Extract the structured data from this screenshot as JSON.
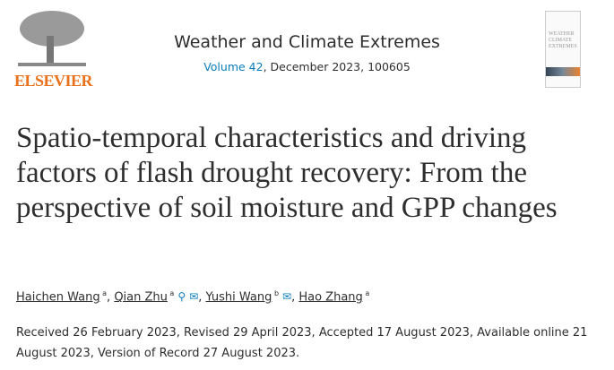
{
  "publisher": {
    "logo_text": "ELSEVIER"
  },
  "journal": {
    "title": "Weather and Climate Extremes",
    "volume_link": "Volume 42",
    "issue_info": ", December 2023, 100605",
    "cover_text": "WEATHER CLIMATE EXTREMES"
  },
  "article": {
    "title": "Spatio-temporal characteristics and driving factors of flash drought recovery: From the perspective of soil moisture and GPP changes"
  },
  "authors": [
    {
      "name": "Haichen Wang",
      "aff": "a",
      "sep": ", "
    },
    {
      "name": "Qian Zhu",
      "aff": "a",
      "sep": ", ",
      "icons": [
        "person-icon",
        "email-icon"
      ]
    },
    {
      "name": "Yushi Wang",
      "aff": "b",
      "sep": ", ",
      "icons": [
        "email-icon"
      ]
    },
    {
      "name": "Hao Zhang",
      "aff": "a",
      "sep": ""
    }
  ],
  "dates": "Received 26 February 2023, Revised 29 April 2023, Accepted 17 August 2023, Available online 21 August 2023, Version of Record 27 August 2023.",
  "colors": {
    "accent": "#0c7dbb",
    "elsevier": "#e9711c"
  }
}
